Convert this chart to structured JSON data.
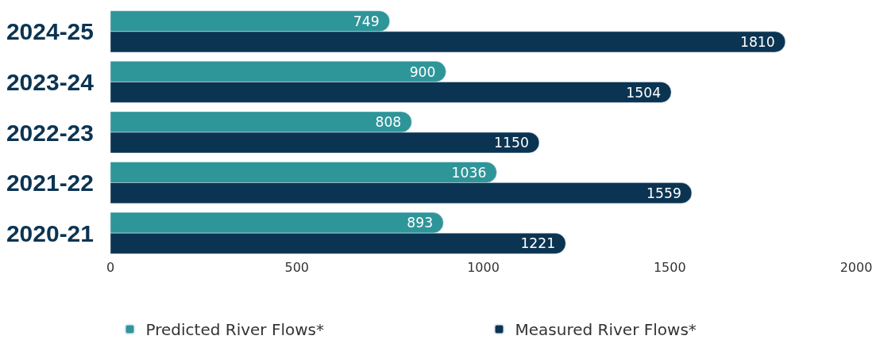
{
  "chart_data": {
    "type": "bar",
    "orientation": "horizontal",
    "categories": [
      "2024-25",
      "2023-24",
      "2022-23",
      "2021-22",
      "2020-21"
    ],
    "series": [
      {
        "name": "Predicted River Flows*",
        "color": "#2e9599",
        "values": [
          749,
          900,
          808,
          1036,
          893
        ]
      },
      {
        "name": "Measured River Flows*",
        "color": "#0b3452",
        "values": [
          1810,
          1504,
          1150,
          1559,
          1221
        ]
      }
    ],
    "xlim": [
      0,
      2000
    ],
    "xticks": [
      0,
      500,
      1000,
      1500,
      2000
    ],
    "data_labels": true,
    "legend": "bottom"
  }
}
